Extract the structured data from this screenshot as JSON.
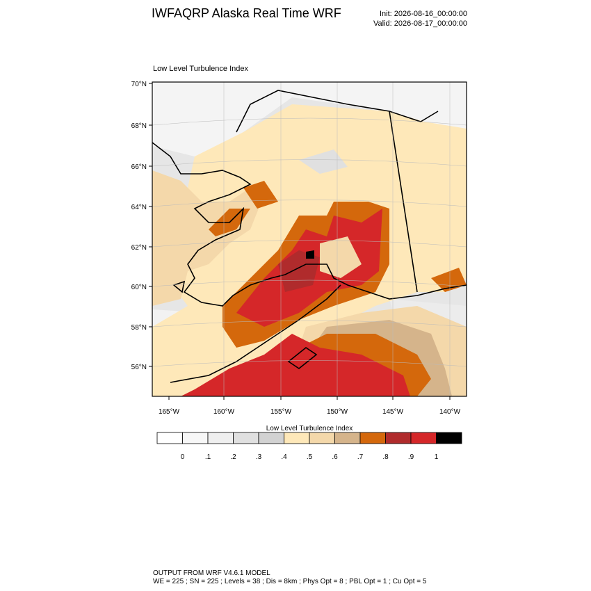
{
  "header": {
    "title": "IWFAQRP Alaska Real Time WRF",
    "init": "Init: 2026-08-16_00:00:00",
    "valid": "Valid: 2026-08-17_00:00:00"
  },
  "map": {
    "subtitle": "Low Level Turbulence Index",
    "lat_labels": [
      "70°N",
      "68°N",
      "66°N",
      "64°N",
      "62°N",
      "60°N",
      "58°N",
      "56°N"
    ],
    "lon_labels": [
      "165°W",
      "160°W",
      "155°W",
      "150°W",
      "145°W",
      "140°W"
    ]
  },
  "colorbar": {
    "title": "Low Level Turbulence Index",
    "levels": [
      0,
      {
        "value": 0.1,
        "label": ".1"
      },
      {
        "value": 0.2,
        "label": ".2"
      },
      {
        "value": 0.3,
        "label": ".3"
      },
      {
        "value": 0.4,
        "label": ".4"
      },
      {
        "value": 0.5,
        "label": ".5"
      },
      {
        "value": 0.6,
        "label": ".6"
      },
      {
        "value": 0.7,
        "label": ".7"
      },
      {
        "value": 0.8,
        "label": ".8"
      },
      {
        "value": 0.9,
        "label": ".9"
      },
      1
    ],
    "colors": [
      "#ffffff",
      "#f7f7f7",
      "#efefef",
      "#e0e0e0",
      "#d2d2d2",
      "#fee8b9",
      "#f4d8aa",
      "#d5b48b",
      "#d4680c",
      "#b02b2c",
      "#d52729",
      "#000000"
    ]
  },
  "footer": {
    "line1": "OUTPUT FROM WRF V4.6.1 MODEL",
    "line2": "WE = 225 ; SN = 225 ; Levels = 38 ; Dis = 8km ; Phys Opt = 8 ; PBL Opt = 1 ; Cu Opt = 5"
  }
}
